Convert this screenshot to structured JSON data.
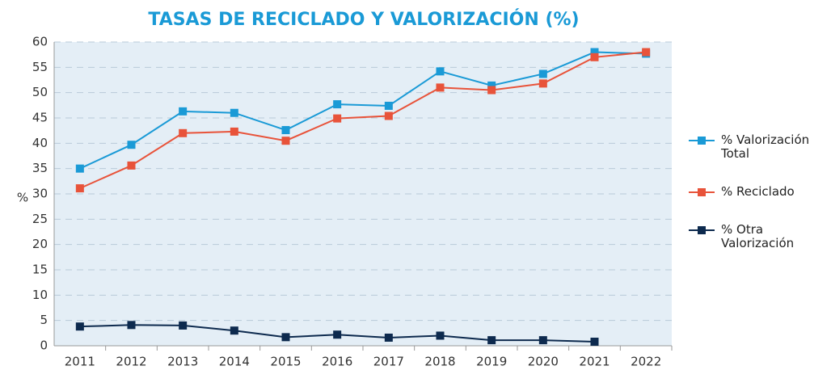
{
  "chart_data": {
    "type": "line",
    "title": "TASAS DE RECICLADO Y VALORIZACIÓN (%)",
    "y_label": "%",
    "categories": [
      "2011",
      "2012",
      "2013",
      "2014",
      "2015",
      "2016",
      "2017",
      "2018",
      "2019",
      "2020",
      "2021",
      "2022"
    ],
    "series": [
      {
        "name": "% Valorización Total",
        "color": "#1a9ad6",
        "values": [
          35,
          39.7,
          46.3,
          46,
          42.6,
          47.7,
          47.4,
          54.2,
          51.4,
          53.7,
          58,
          57.7
        ]
      },
      {
        "name": "% Reciclado",
        "color": "#e8533a",
        "values": [
          31.1,
          35.6,
          42,
          42.3,
          40.5,
          44.9,
          45.4,
          51,
          50.5,
          51.8,
          57,
          58
        ]
      },
      {
        "name": "% Otra Valorización",
        "color": "#0d2a4e",
        "values": [
          3.8,
          4.1,
          4,
          3,
          1.7,
          2.2,
          1.6,
          2,
          1.1,
          1.1,
          0.8,
          null
        ]
      }
    ],
    "ylim": [
      0,
      60
    ],
    "yticks": [
      0,
      5,
      10,
      15,
      20,
      25,
      30,
      35,
      40,
      45,
      50,
      55,
      60
    ],
    "grid": true,
    "legend": "right"
  }
}
